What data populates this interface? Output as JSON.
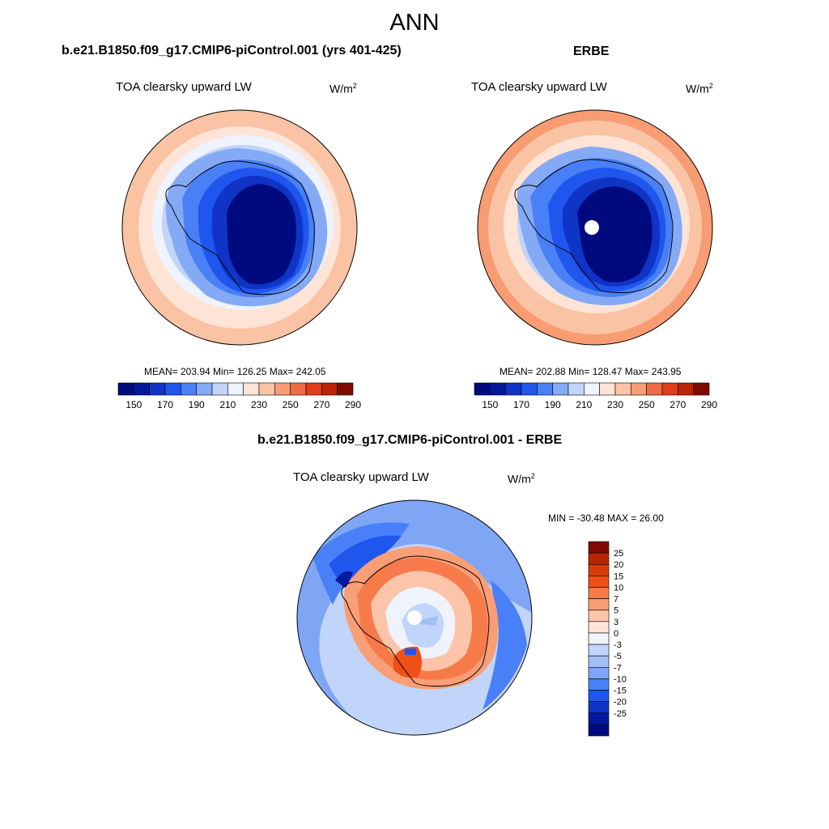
{
  "main_title": "ANN",
  "panels": [
    {
      "title": "b.e21.B1850.f09_g17.CMIP6-piControl.001 (yrs 401-425)",
      "variable": "TOA clearsky upward LW",
      "units_base": "W/m",
      "units_exp": "2",
      "stats": "MEAN= 203.94  Min= 126.25  Max= 242.05",
      "has_pole_hole": false
    },
    {
      "title": "ERBE",
      "variable": "TOA clearsky upward LW",
      "units_base": "W/m",
      "units_exp": "2",
      "stats": "MEAN= 202.88  Min= 128.47  Max= 243.95",
      "has_pole_hole": true
    },
    {
      "title": "b.e21.B1850.f09_g17.CMIP6-piControl.001 - ERBE",
      "variable": "TOA clearsky upward LW",
      "units_base": "W/m",
      "units_exp": "2",
      "stats": "MIN = -30.48 MAX =  26.00",
      "has_pole_hole": true
    }
  ],
  "colorbars": {
    "absolute": {
      "colors": [
        "#000a7f",
        "#00199d",
        "#0f34c6",
        "#1f56ed",
        "#4a80f7",
        "#85aaf5",
        "#c1d5fa",
        "#eef3fd",
        "#fde4d6",
        "#fac3a4",
        "#f89c73",
        "#f06a44",
        "#df3e19",
        "#bb2404",
        "#7f0a00"
      ],
      "tick_labels": [
        "150",
        "170",
        "190",
        "210",
        "230",
        "250",
        "270",
        "290"
      ]
    },
    "difference": {
      "colors": [
        "#7f0a00",
        "#b72602",
        "#d63c09",
        "#f04f16",
        "#f77a4a",
        "#fa9e76",
        "#fcc4a8",
        "#fde4d6",
        "#eef3fd",
        "#c1d5fa",
        "#a2bef6",
        "#7ea6f5",
        "#4a80f7",
        "#1f56ed",
        "#0f34c6",
        "#00199d",
        "#000a7f"
      ],
      "tick_labels": [
        "25",
        "20",
        "15",
        "10",
        "7",
        "5",
        "3",
        "0",
        "-3",
        "-5",
        "-7",
        "-10",
        "-15",
        "-20",
        "-25"
      ]
    }
  }
}
